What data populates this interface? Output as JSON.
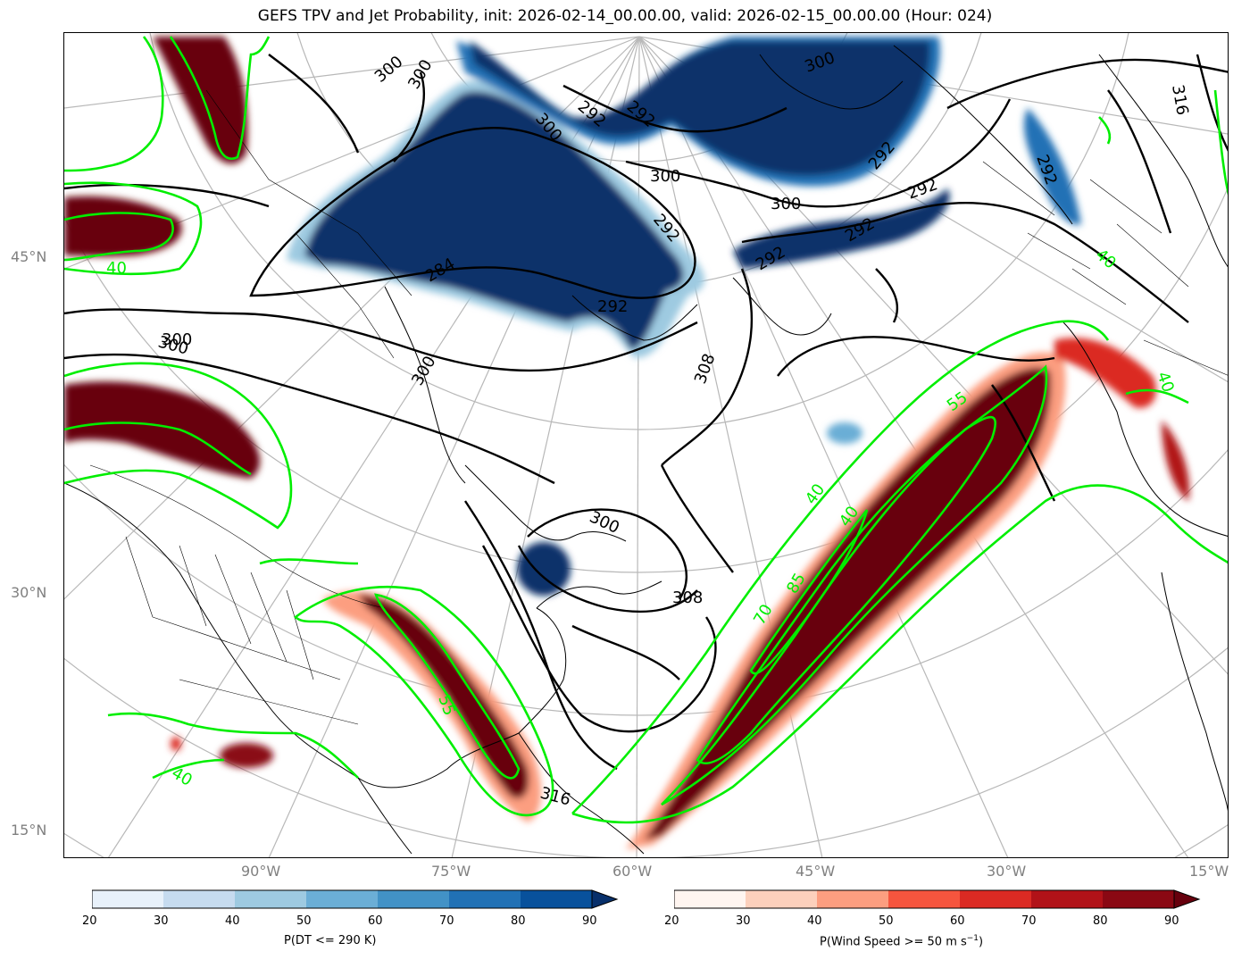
{
  "title": "GEFS TPV and Jet Probability, init: 2026-02-14_00.00.00, valid: 2026-02-15_00.00.00 (Hour: 024)",
  "lat_labels": [
    "45°N",
    "30°N",
    "15°N"
  ],
  "lon_labels": [
    "90°W",
    "75°W",
    "60°W",
    "45°W",
    "30°W",
    "15°W"
  ],
  "contour_labels": {
    "theta": [
      "300",
      "300",
      "292",
      "292",
      "300",
      "292",
      "300",
      "300",
      "292",
      "292",
      "292",
      "292",
      "300",
      "300",
      "300",
      "292",
      "308",
      "300",
      "308",
      "316",
      "316",
      "292",
      "284",
      "300"
    ],
    "wind": [
      "40",
      "40",
      "40",
      "40",
      "55",
      "55",
      "70",
      "85",
      "40",
      "40"
    ]
  },
  "colorbars": {
    "blue": {
      "label": "P(DT <= 290 K)",
      "ticks": [
        "20",
        "30",
        "40",
        "50",
        "60",
        "70",
        "80",
        "90"
      ],
      "colors": [
        "#e8f1fa",
        "#c6dbef",
        "#9ecae1",
        "#6baed6",
        "#4292c6",
        "#2171b5",
        "#08519c",
        "#08306b"
      ]
    },
    "red": {
      "label_main": "P(Wind Speed >= 50 m s",
      "label_exp": "−1",
      "label_end": ")",
      "ticks": [
        "20",
        "30",
        "40",
        "50",
        "60",
        "70",
        "80",
        "90"
      ],
      "colors": [
        "#fff5f0",
        "#fcd0bc",
        "#fc9e80",
        "#f6553e",
        "#db2a23",
        "#b11218",
        "#8a0813",
        "#67000d"
      ]
    }
  }
}
